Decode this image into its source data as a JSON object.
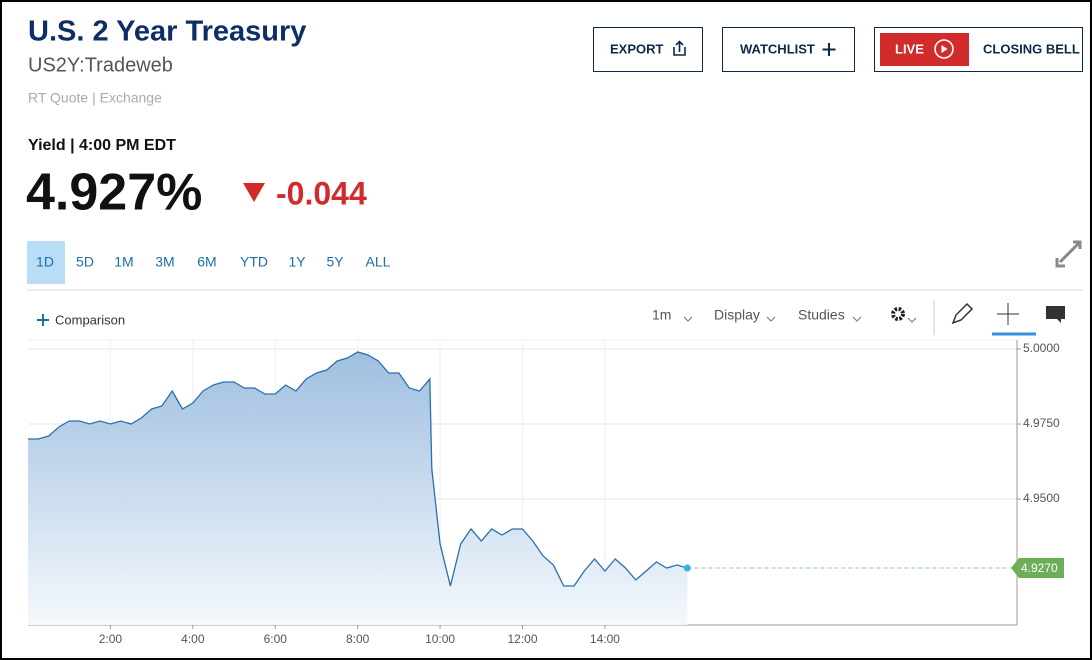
{
  "header": {
    "title": "U.S. 2 Year Treasury",
    "symbol": "US2Y:Tradeweb",
    "source": "RT Quote | Exchange"
  },
  "buttons": [
    "EXPORT",
    "WATCHLIST",
    "LIVE",
    "CLOSING BELL"
  ],
  "quote": {
    "label": "Yield | 4:00 PM EDT",
    "last": "4.927%",
    "change": "-0.044"
  },
  "ranges": [
    "1D",
    "5D",
    "1M",
    "3M",
    "6M",
    "YTD",
    "1Y",
    "5Y",
    "ALL"
  ],
  "toolbar": {
    "comparison": "Comparison",
    "interval": "1m",
    "display": "Display",
    "studies": "Studies"
  },
  "chart_data": {
    "type": "area",
    "color": "#2a6fad",
    "x": [
      0,
      0.25,
      0.5,
      0.75,
      1,
      1.25,
      1.5,
      1.75,
      2,
      2.25,
      2.5,
      2.75,
      3,
      3.25,
      3.5,
      3.75,
      4,
      4.25,
      4.5,
      4.75,
      5,
      5.25,
      5.5,
      5.75,
      6,
      6.25,
      6.5,
      6.75,
      7,
      7.25,
      7.5,
      7.75,
      8,
      8.25,
      8.5,
      8.75,
      9,
      9.25,
      9.5,
      9.75,
      9.8,
      10,
      10.25,
      10.5,
      10.75,
      11,
      11.25,
      11.5,
      11.75,
      12,
      12.25,
      12.5,
      12.75,
      13,
      13.25,
      13.5,
      13.75,
      14,
      14.25,
      14.5,
      14.75,
      15,
      15.25,
      15.5,
      15.75,
      16
    ],
    "values": [
      4.97,
      4.97,
      4.971,
      4.974,
      4.976,
      4.976,
      4.975,
      4.976,
      4.975,
      4.976,
      4.975,
      4.977,
      4.98,
      4.981,
      4.986,
      4.98,
      4.982,
      4.986,
      4.988,
      4.989,
      4.989,
      4.987,
      4.987,
      4.985,
      4.985,
      4.988,
      4.986,
      4.99,
      4.992,
      4.993,
      4.996,
      4.997,
      4.999,
      4.998,
      4.996,
      4.992,
      4.992,
      4.987,
      4.986,
      4.99,
      4.96,
      4.935,
      4.921,
      4.935,
      4.94,
      4.936,
      4.94,
      4.938,
      4.94,
      4.94,
      4.936,
      4.931,
      4.928,
      4.921,
      4.921,
      4.926,
      4.93,
      4.926,
      4.93,
      4.927,
      4.923,
      4.926,
      4.929,
      4.927,
      4.928,
      4.927
    ],
    "xlim": [
      0,
      24
    ],
    "xticks": [
      {
        "value": 2,
        "label": "2:00"
      },
      {
        "value": 4,
        "label": "4:00"
      },
      {
        "value": 6,
        "label": "6:00"
      },
      {
        "value": 8,
        "label": "8:00"
      },
      {
        "value": 10,
        "label": "10:00"
      },
      {
        "value": 12,
        "label": "12:00"
      },
      {
        "value": 14,
        "label": "14:00"
      }
    ],
    "ylim": [
      4.908,
      5.003
    ],
    "yticks": [
      {
        "value": 4.95,
        "label": "4.9500"
      },
      {
        "value": 4.975,
        "label": "4.9750"
      },
      {
        "value": 5.0,
        "label": "5.0000"
      }
    ],
    "current": {
      "value": 4.927,
      "label": "4.9270"
    },
    "grid": true
  }
}
